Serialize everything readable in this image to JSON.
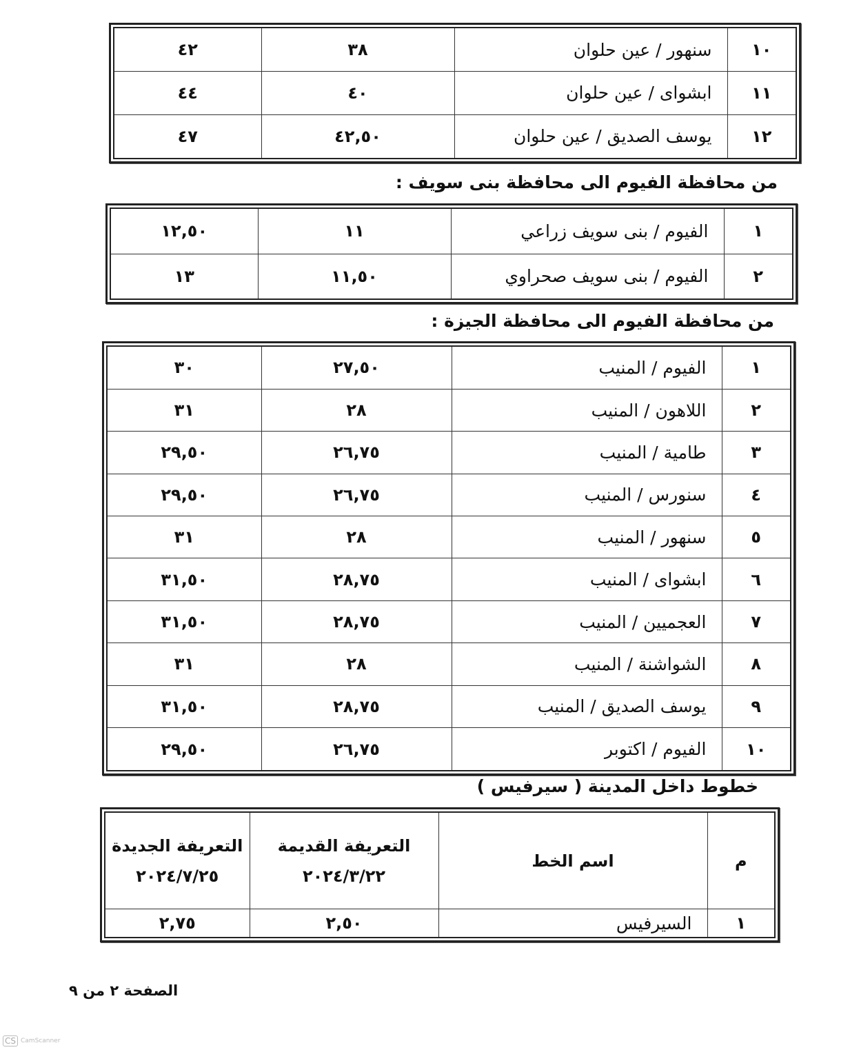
{
  "tables": {
    "t1": {
      "rows": [
        {
          "no": "١٠",
          "line": "سنهور / عين حلوان",
          "old": "٣٨",
          "new": "٤٢"
        },
        {
          "no": "١١",
          "line": "ابشواى / عين حلوان",
          "old": "٤٠",
          "new": "٤٤"
        },
        {
          "no": "١٢",
          "line": "يوسف الصديق / عين حلوان",
          "old": "٤٢,٥٠",
          "new": "٤٧"
        }
      ]
    },
    "t2": {
      "rows": [
        {
          "no": "١",
          "line": "الفيوم / بنى سويف زراعي",
          "old": "١١",
          "new": "١٢,٥٠"
        },
        {
          "no": "٢",
          "line": "الفيوم / بنى سويف صحراوي",
          "old": "١١,٥٠",
          "new": "١٣"
        }
      ]
    },
    "t3": {
      "rows": [
        {
          "no": "١",
          "line": "الفيوم / المنيب",
          "old": "٢٧,٥٠",
          "new": "٣٠"
        },
        {
          "no": "٢",
          "line": "اللاهون / المنيب",
          "old": "٢٨",
          "new": "٣١"
        },
        {
          "no": "٣",
          "line": "طامية / المنيب",
          "old": "٢٦,٧٥",
          "new": "٢٩,٥٠"
        },
        {
          "no": "٤",
          "line": "سنورس / المنيب",
          "old": "٢٦,٧٥",
          "new": "٢٩,٥٠"
        },
        {
          "no": "٥",
          "line": "سنهور / المنيب",
          "old": "٢٨",
          "new": "٣١"
        },
        {
          "no": "٦",
          "line": "ابشواى / المنيب",
          "old": "٢٨,٧٥",
          "new": "٣١,٥٠"
        },
        {
          "no": "٧",
          "line": "العجميين / المنيب",
          "old": "٢٨,٧٥",
          "new": "٣١,٥٠"
        },
        {
          "no": "٨",
          "line": "الشواشنة / المنيب",
          "old": "٢٨",
          "new": "٣١"
        },
        {
          "no": "٩",
          "line": "يوسف الصديق / المنيب",
          "old": "٢٨,٧٥",
          "new": "٣١,٥٠"
        },
        {
          "no": "١٠",
          "line": "الفيوم / اكتوبر",
          "old": "٢٦,٧٥",
          "new": "٢٩,٥٠"
        }
      ]
    },
    "t4": {
      "header": {
        "no": "م",
        "line": "اسم الخط",
        "old": "التعريفة القديمة",
        "old_date": "٢٠٢٤/٣/٢٢",
        "new": "التعريفة الجديدة",
        "new_date": "٢٠٢٤/٧/٢٥"
      },
      "rows": [
        {
          "no": "١",
          "line": "السيرفيس",
          "old": "٢,٥٠",
          "new": "٢,٧٥"
        }
      ]
    }
  },
  "headings": {
    "beni_suef": "من محافظة الفيوم الى محافظة بنى سويف :",
    "giza": "من محافظة الفيوم الى محافظة الجيزة :",
    "service": "خطوط داخل المدينة ( سيرفيس )"
  },
  "footer": {
    "page": "الصفحة ٢ من ٩"
  },
  "watermark": {
    "logo": "CS",
    "text": "CamScanner"
  }
}
